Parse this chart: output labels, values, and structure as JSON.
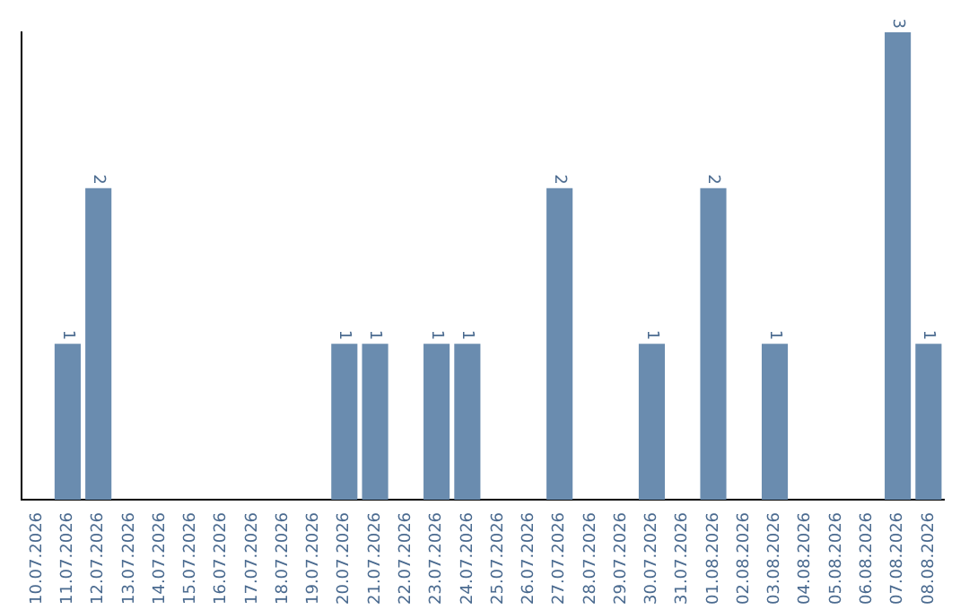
{
  "chart_data": {
    "type": "bar",
    "categories": [
      "10.07.2026",
      "11.07.2026",
      "12.07.2026",
      "13.07.2026",
      "14.07.2026",
      "15.07.2026",
      "16.07.2026",
      "17.07.2026",
      "18.07.2026",
      "19.07.2026",
      "20.07.2026",
      "21.07.2026",
      "22.07.2026",
      "23.07.2026",
      "24.07.2026",
      "25.07.2026",
      "26.07.2026",
      "27.07.2026",
      "28.07.2026",
      "29.07.2026",
      "30.07.2026",
      "31.07.2026",
      "01.08.2026",
      "02.08.2026",
      "03.08.2026",
      "04.08.2026",
      "05.08.2026",
      "06.08.2026",
      "07.08.2026",
      "08.08.2026"
    ],
    "values": [
      0,
      1,
      2,
      0,
      0,
      0,
      0,
      0,
      0,
      0,
      1,
      1,
      0,
      1,
      1,
      0,
      0,
      2,
      0,
      0,
      1,
      0,
      2,
      0,
      1,
      0,
      0,
      0,
      3,
      1
    ],
    "value_labels": [
      null,
      "1",
      "2",
      null,
      null,
      null,
      null,
      null,
      null,
      null,
      "1",
      "1",
      null,
      "1",
      "1",
      null,
      null,
      "2",
      null,
      null,
      "1",
      null,
      "2",
      null,
      "1",
      null,
      null,
      null,
      "3",
      "1"
    ],
    "color": "#6a8caf",
    "grid": false,
    "legend": false,
    "tick_labels": "x"
  }
}
